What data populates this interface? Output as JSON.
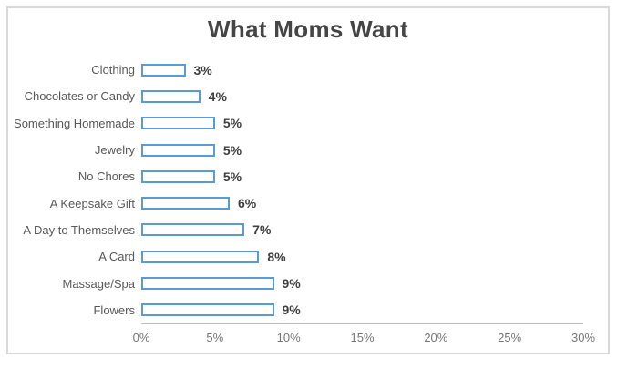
{
  "chart_data": {
    "type": "bar",
    "orientation": "horizontal",
    "title": "What Moms Want",
    "categories": [
      "Clothing",
      "Chocolates or Candy",
      "Something Homemade",
      "Jewelry",
      "No Chores",
      "A Keepsake Gift",
      "A Day to Themselves",
      "A Card",
      "Massage/Spa",
      "Flowers"
    ],
    "values": [
      3,
      4,
      5,
      5,
      5,
      6,
      7,
      8,
      9,
      9
    ],
    "data_labels": [
      "3%",
      "4%",
      "5%",
      "5%",
      "5%",
      "6%",
      "7%",
      "8%",
      "9%",
      "9%"
    ],
    "xlabel": "",
    "ylabel": "",
    "xlim": [
      0,
      30
    ],
    "x_tick_labels": [
      "0%",
      "5%",
      "10%",
      "15%",
      "20%",
      "25%",
      "30%"
    ],
    "x_tick_values": [
      0,
      5,
      10,
      15,
      20,
      25,
      30
    ],
    "grid": false,
    "legend": false,
    "data_labels_shown": true
  },
  "style": {
    "bar_border_color": "#5B9BD5",
    "bar_fill_color": "#FFFFFF",
    "title_color": "#454545",
    "category_label_color": "#595959",
    "data_label_color": "#404040",
    "tick_label_color": "#767676",
    "axis_line_color": "#BFBFBF",
    "frame_border_color": "#D9D9D9",
    "background_color": "#FFFFFF"
  }
}
